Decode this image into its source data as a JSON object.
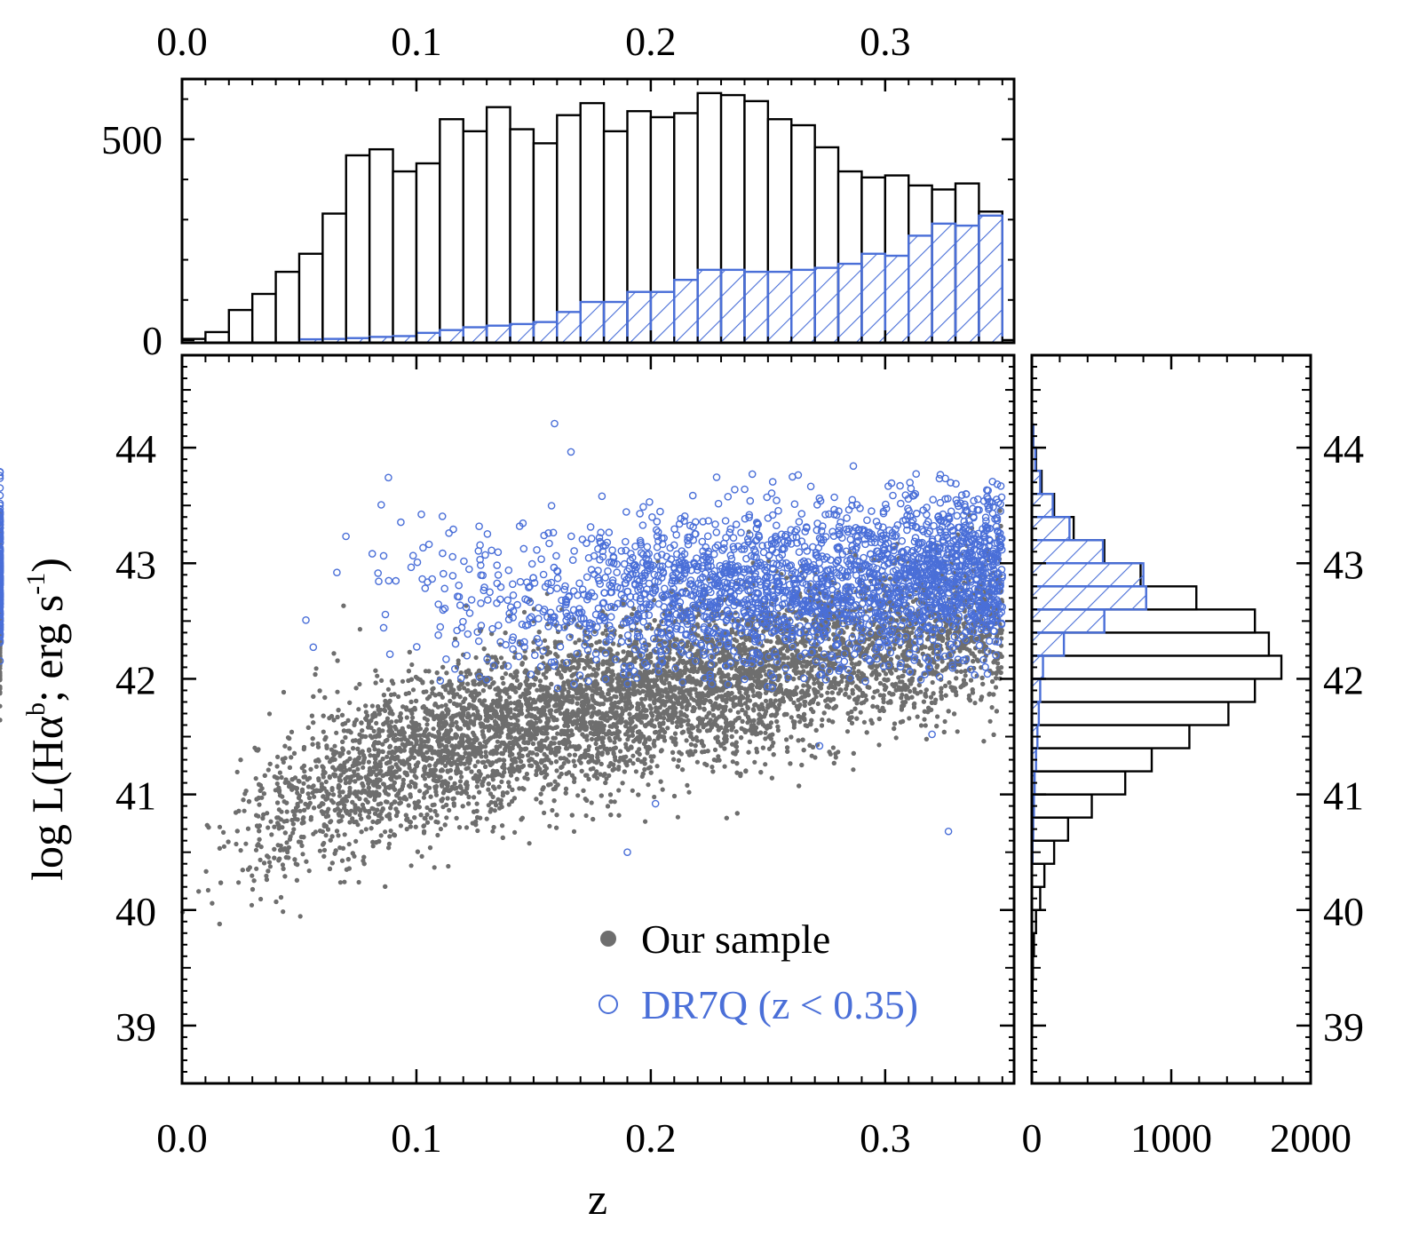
{
  "colors": {
    "sample": "#6e6e6e",
    "dr7q": "#4a6fd8",
    "axis": "#000000"
  },
  "chart_data": [
    {
      "id": "top-histogram",
      "type": "bar",
      "title": "",
      "xlabel": "",
      "ylabel": "",
      "xlim": [
        0.0,
        0.355
      ],
      "ylim": [
        0,
        650
      ],
      "x_tick_labels": [
        "0.0",
        "0.1",
        "0.2",
        "0.3"
      ],
      "x_ticks": [
        0.0,
        0.1,
        0.2,
        0.3
      ],
      "y_tick_labels": [
        "0",
        "500"
      ],
      "y_ticks": [
        0,
        500
      ],
      "bin_edges": [
        0.0,
        0.01,
        0.02,
        0.03,
        0.04,
        0.05,
        0.06,
        0.07,
        0.08,
        0.09,
        0.1,
        0.11,
        0.12,
        0.13,
        0.14,
        0.15,
        0.16,
        0.17,
        0.18,
        0.19,
        0.2,
        0.21,
        0.22,
        0.23,
        0.24,
        0.25,
        0.26,
        0.27,
        0.28,
        0.29,
        0.3,
        0.31,
        0.32,
        0.33,
        0.34,
        0.35
      ],
      "series": [
        {
          "name": "Our sample",
          "style": "open",
          "values": [
            3,
            20,
            75,
            115,
            170,
            215,
            315,
            460,
            475,
            420,
            440,
            550,
            520,
            580,
            525,
            490,
            560,
            590,
            520,
            570,
            555,
            565,
            615,
            610,
            595,
            550,
            535,
            480,
            420,
            405,
            410,
            385,
            375,
            390,
            320,
            345
          ]
        },
        {
          "name": "DR7Q (z < 0.35)",
          "style": "hatched",
          "values": [
            0,
            0,
            0,
            0,
            0,
            2,
            3,
            5,
            8,
            10,
            18,
            25,
            32,
            36,
            40,
            45,
            70,
            95,
            95,
            120,
            120,
            150,
            175,
            175,
            170,
            170,
            175,
            180,
            190,
            215,
            210,
            260,
            290,
            285,
            310,
            310
          ]
        }
      ]
    },
    {
      "id": "main-scatter",
      "type": "scatter",
      "title": "",
      "xlabel": "z",
      "ylabel_main": "log L(Hα",
      "ylabel_sup1": "b",
      "ylabel_mid": "; erg s",
      "ylabel_sup2": "-1",
      "ylabel_end": ")",
      "xlim": [
        0.0,
        0.355
      ],
      "ylim": [
        38.5,
        44.8
      ],
      "x_tick_labels": [
        "0.0",
        "0.1",
        "0.2",
        "0.3"
      ],
      "x_ticks": [
        0.0,
        0.1,
        0.2,
        0.3
      ],
      "y_tick_labels": [
        "39",
        "40",
        "41",
        "42",
        "43",
        "44"
      ],
      "y_ticks": [
        39,
        40,
        41,
        42,
        43,
        44
      ],
      "legend_position": "bottom-right",
      "series": [
        {
          "name": "Our sample",
          "marker": "filled-circle",
          "trend": {
            "z": [
              0.01,
              0.05,
              0.1,
              0.15,
              0.2,
              0.25,
              0.3,
              0.35
            ],
            "logL": [
              40.3,
              41.0,
              41.35,
              41.65,
              41.85,
              42.05,
              42.25,
              42.5
            ]
          },
          "scatter_sigma": 0.35,
          "count": 15000
        },
        {
          "name": "DR7Q (z < 0.35)",
          "marker": "open-circle",
          "trend": {
            "z": [
              0.06,
              0.1,
              0.15,
              0.2,
              0.25,
              0.3,
              0.35
            ],
            "logL": [
              42.8,
              42.75,
              42.7,
              42.75,
              42.8,
              42.85,
              42.95
            ]
          },
          "scatter_sigma": 0.35,
          "count": 4400,
          "outliers": [
            {
              "z": 0.19,
              "logL": 40.5
            },
            {
              "z": 0.202,
              "logL": 40.92
            },
            {
              "z": 0.327,
              "logL": 40.68
            },
            {
              "z": 0.272,
              "logL": 41.42
            },
            {
              "z": 0.32,
              "logL": 41.52
            }
          ]
        }
      ]
    },
    {
      "id": "right-histogram",
      "type": "bar",
      "orientation": "horizontal",
      "title": "",
      "xlabel": "",
      "ylabel": "",
      "xlim": [
        0,
        2000
      ],
      "ylim": [
        38.5,
        44.8
      ],
      "x_tick_labels": [
        "0",
        "1000",
        "2000"
      ],
      "x_ticks": [
        0,
        1000,
        2000
      ],
      "y_tick_labels": [
        "39",
        "40",
        "41",
        "42",
        "43",
        "44"
      ],
      "y_ticks": [
        39,
        40,
        41,
        42,
        43,
        44
      ],
      "bin_edges": [
        39.0,
        39.2,
        39.4,
        39.6,
        39.8,
        40.0,
        40.2,
        40.4,
        40.6,
        40.8,
        41.0,
        41.2,
        41.4,
        41.6,
        41.8,
        42.0,
        42.2,
        42.4,
        42.6,
        42.8,
        43.0,
        43.2,
        43.4,
        43.6,
        43.8,
        44.0,
        44.2
      ],
      "series": [
        {
          "name": "Our sample",
          "style": "open",
          "values": [
            3,
            5,
            8,
            15,
            30,
            60,
            90,
            160,
            260,
            430,
            670,
            860,
            1130,
            1410,
            1600,
            1790,
            1700,
            1600,
            1180,
            780,
            520,
            300,
            160,
            70,
            30,
            10
          ]
        },
        {
          "name": "DR7Q (z < 0.35)",
          "style": "hatched",
          "values": [
            0,
            0,
            0,
            0,
            0,
            0,
            0,
            5,
            10,
            15,
            20,
            30,
            40,
            50,
            60,
            80,
            230,
            520,
            820,
            800,
            510,
            270,
            150,
            60,
            25,
            10
          ]
        }
      ]
    }
  ],
  "legend": {
    "sample_label": "Our sample",
    "dr7q_label": "DR7Q (z < 0.35)"
  }
}
